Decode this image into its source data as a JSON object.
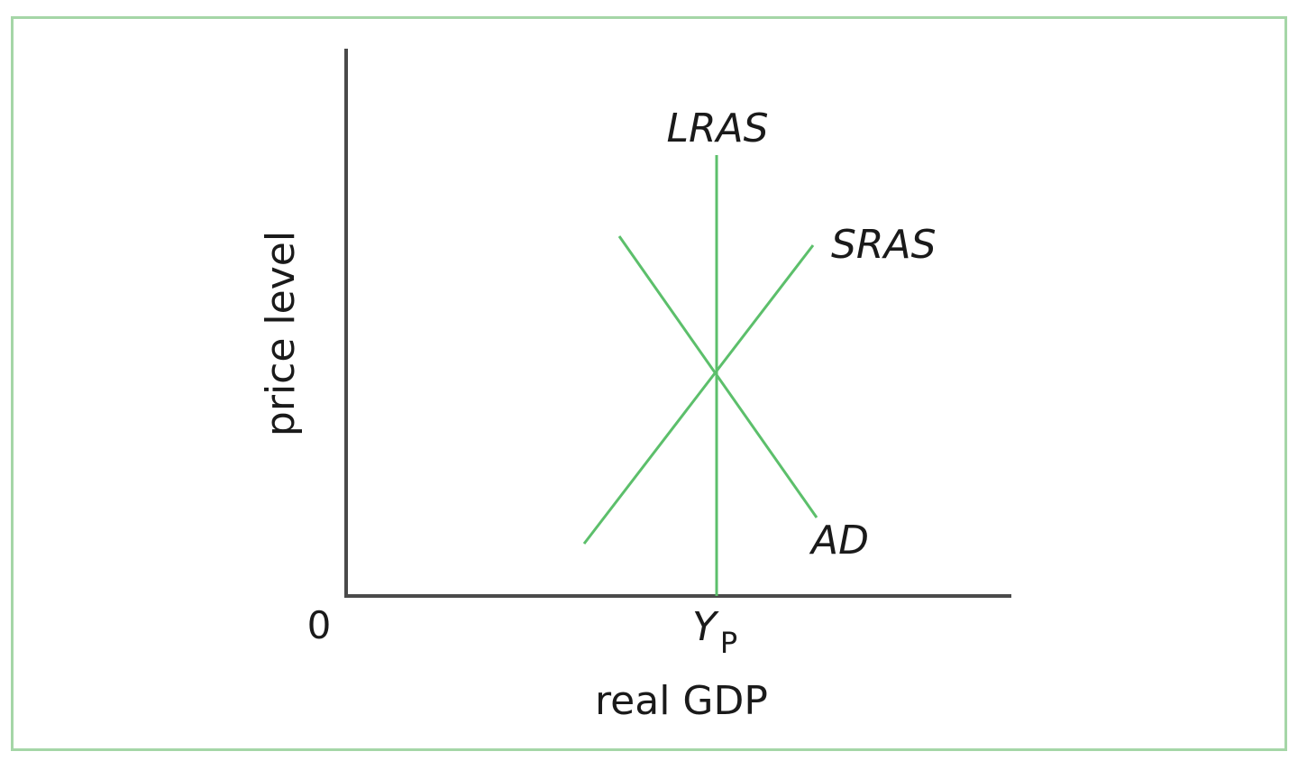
{
  "diagram": {
    "curve_labels": {
      "lras": "LRAS",
      "sras": "SRAS",
      "ad": "AD"
    },
    "axes": {
      "y_title": "price level",
      "x_title": "real GDP",
      "origin": "0",
      "x_tick_main": "Y",
      "x_tick_sub": "P"
    },
    "colors": {
      "curves": "#5cbf6b",
      "axes": "#4a4a4a",
      "frame": "#a5d6a7"
    }
  }
}
